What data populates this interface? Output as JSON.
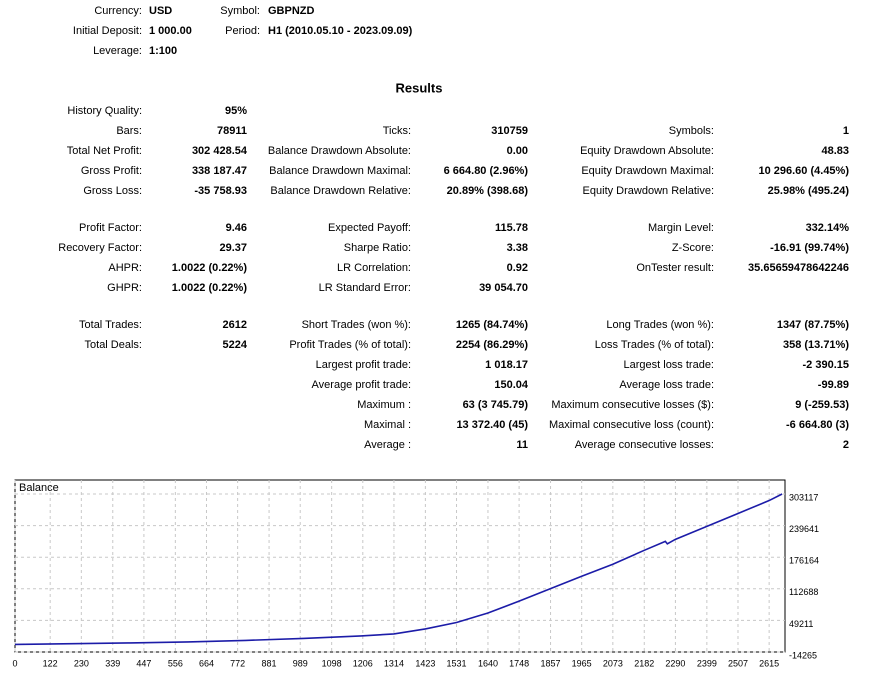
{
  "header": {
    "rows": [
      {
        "col1": {
          "label": "Currency:",
          "value": "USD"
        },
        "col2": {
          "label": "Symbol:",
          "value": "GBPNZD"
        }
      },
      {
        "col1": {
          "label": "Initial Deposit:",
          "value": "1 000.00"
        },
        "col2": {
          "label": "Period:",
          "value": "H1 (2010.05.10 - 2023.09.09)"
        }
      },
      {
        "col1": {
          "label": "Leverage:",
          "value": "1:100"
        }
      }
    ]
  },
  "results": {
    "title": "Results",
    "sections": [
      {
        "rows": [
          {
            "col1": {
              "label": "History Quality:",
              "value": "95%"
            }
          },
          {
            "col1": {
              "label": "Bars:",
              "value": "78911"
            },
            "col2": {
              "label": "Ticks:",
              "value": "310759"
            },
            "col3": {
              "label": "Symbols:",
              "value": "1"
            }
          },
          {
            "col1": {
              "label": "Total Net Profit:",
              "value": "302 428.54"
            },
            "col2": {
              "label": "Balance Drawdown Absolute:",
              "value": "0.00"
            },
            "col3": {
              "label": "Equity Drawdown Absolute:",
              "value": "48.83"
            }
          },
          {
            "col1": {
              "label": "Gross Profit:",
              "value": "338 187.47"
            },
            "col2": {
              "label": "Balance Drawdown Maximal:",
              "value": "6 664.80 (2.96%)"
            },
            "col3": {
              "label": "Equity Drawdown Maximal:",
              "value": "10 296.60 (4.45%)"
            }
          },
          {
            "col1": {
              "label": "Gross Loss:",
              "value": "-35 758.93"
            },
            "col2": {
              "label": "Balance Drawdown Relative:",
              "value": "20.89% (398.68)"
            },
            "col3": {
              "label": "Equity Drawdown Relative:",
              "value": "25.98% (495.24)"
            }
          }
        ]
      },
      {
        "rows": [
          {
            "col1": {
              "label": "Profit Factor:",
              "value": "9.46"
            },
            "col2": {
              "label": "Expected Payoff:",
              "value": "115.78"
            },
            "col3": {
              "label": "Margin Level:",
              "value": "332.14%"
            }
          },
          {
            "col1": {
              "label": "Recovery Factor:",
              "value": "29.37"
            },
            "col2": {
              "label": "Sharpe Ratio:",
              "value": "3.38"
            },
            "col3": {
              "label": "Z-Score:",
              "value": "-16.91 (99.74%)"
            }
          },
          {
            "col1": {
              "label": "AHPR:",
              "value": "1.0022 (0.22%)"
            },
            "col2": {
              "label": "LR Correlation:",
              "value": "0.92"
            },
            "col3": {
              "label": "OnTester result:",
              "value": "35.65659478642246"
            }
          },
          {
            "col1": {
              "label": "GHPR:",
              "value": "1.0022 (0.22%)"
            },
            "col2": {
              "label": "LR Standard Error:",
              "value": "39 054.70"
            }
          }
        ]
      },
      {
        "rows": [
          {
            "col1": {
              "label": "Total Trades:",
              "value": "2612"
            },
            "col2": {
              "label": "Short Trades (won %):",
              "value": "1265 (84.74%)"
            },
            "col3": {
              "label": "Long Trades (won %):",
              "value": "1347 (87.75%)"
            }
          },
          {
            "col1": {
              "label": "Total Deals:",
              "value": "5224"
            },
            "col2": {
              "label": "Profit Trades (% of total):",
              "value": "2254 (86.29%)"
            },
            "col3": {
              "label": "Loss Trades (% of total):",
              "value": "358 (13.71%)"
            }
          },
          {
            "col2": {
              "label": "Largest profit trade:",
              "value": "1 018.17"
            },
            "col3": {
              "label": "Largest loss trade:",
              "value": "-2 390.15"
            }
          },
          {
            "col2": {
              "label": "Average profit trade:",
              "value": "150.04"
            },
            "col3": {
              "label": "Average loss trade:",
              "value": "-99.89"
            }
          },
          {
            "col2": {
              "label": "Maximum :",
              "value": "63 (3 745.79)"
            },
            "col3": {
              "label": "Maximum consecutive losses ($):",
              "value": "9 (-259.53)"
            }
          },
          {
            "col2": {
              "label": "Maximal :",
              "value": "13 372.40 (45)"
            },
            "col3": {
              "label": "Maximal consecutive loss (count):",
              "value": "-6 664.80 (3)"
            }
          },
          {
            "col2": {
              "label": "Average :",
              "value": "11"
            },
            "col3": {
              "label": "Average consecutive losses:",
              "value": "2"
            }
          }
        ]
      }
    ]
  },
  "chart_data": {
    "type": "line",
    "title": "Balance",
    "color": "#1c1ca8",
    "grid": true,
    "x": [
      0,
      200,
      400,
      600,
      800,
      1000,
      1200,
      1314,
      1423,
      1531,
      1640,
      1748,
      1857,
      1965,
      2073,
      2182,
      2255,
      2262,
      2290,
      2399,
      2507,
      2615,
      2660
    ],
    "values": [
      1000,
      2500,
      4000,
      6000,
      9000,
      13000,
      18000,
      22000,
      32000,
      45000,
      64000,
      88000,
      113000,
      138000,
      162000,
      190000,
      208000,
      203000,
      212000,
      238000,
      264000,
      290000,
      303117
    ],
    "xlim": [
      0,
      2670
    ],
    "ylim": [
      -14265,
      331240
    ],
    "xticks": [
      0,
      122,
      230,
      339,
      447,
      556,
      664,
      772,
      881,
      989,
      1098,
      1206,
      1314,
      1423,
      1531,
      1640,
      1748,
      1857,
      1965,
      2073,
      2182,
      2290,
      2399,
      2507,
      2615
    ],
    "yticks": [
      -14265,
      49211,
      112688,
      176164,
      239641,
      303117
    ]
  }
}
